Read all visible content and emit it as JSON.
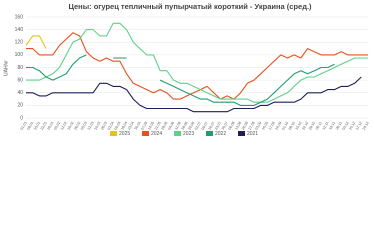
{
  "chart_data": {
    "type": "line",
    "title": "Цены: огурец тепличный пупырчатый короткий - Украина (сред.)",
    "y_label": "UAH/кг",
    "categories": [
      "01.01",
      "08.01",
      "15.01",
      "22.01",
      "29.01",
      "05.02",
      "12.02",
      "19.02",
      "26.02",
      "05.03",
      "12.03",
      "19.03",
      "26.03",
      "02.04",
      "09.04",
      "16.04",
      "23.04",
      "30.04",
      "07.05",
      "14.05",
      "21.05",
      "28.05",
      "04.06",
      "11.06",
      "18.06",
      "25.06",
      "02.07",
      "09.07",
      "16.07",
      "23.07",
      "30.07",
      "06.08",
      "13.08",
      "20.08",
      "27.08",
      "03.09",
      "10.09",
      "17.09",
      "24.09",
      "01.10",
      "08.10",
      "15.10",
      "22.10",
      "29.10",
      "05.11",
      "12.11",
      "19.11",
      "26.11",
      "03.12",
      "10.12",
      "17.12",
      "24.12"
    ],
    "ylim": [
      0,
      160
    ],
    "yticks": [
      0,
      20,
      40,
      60,
      80,
      100,
      120,
      140,
      160
    ],
    "grid": true,
    "series": [
      {
        "name": "2025",
        "color": "#e8c21a",
        "values": [
          115,
          130,
          130,
          110,
          null,
          null,
          null,
          null,
          null,
          null,
          null,
          null,
          null,
          null,
          null,
          null,
          null,
          null,
          null,
          null,
          null,
          null,
          null,
          null,
          null,
          null,
          null,
          null,
          null,
          null,
          null,
          null,
          null,
          null,
          null,
          null,
          null,
          null,
          null,
          null,
          null,
          null,
          null,
          null,
          null,
          null,
          null,
          null,
          null,
          null,
          null,
          null
        ]
      },
      {
        "name": "2024",
        "color": "#e8501e",
        "values": [
          110,
          110,
          100,
          100,
          100,
          115,
          125,
          135,
          130,
          105,
          95,
          90,
          95,
          90,
          90,
          70,
          55,
          50,
          45,
          40,
          45,
          40,
          30,
          30,
          35,
          40,
          45,
          50,
          40,
          30,
          35,
          30,
          40,
          55,
          60,
          70,
          80,
          90,
          100,
          95,
          100,
          95,
          110,
          105,
          100,
          100,
          100,
          105,
          100,
          100,
          100,
          100
        ]
      },
      {
        "name": "2023",
        "color": "#5fd08a",
        "values": [
          60,
          60,
          60,
          65,
          70,
          80,
          100,
          120,
          125,
          140,
          140,
          130,
          130,
          150,
          150,
          140,
          120,
          110,
          100,
          100,
          75,
          75,
          60,
          55,
          55,
          50,
          45,
          40,
          35,
          30,
          30,
          30,
          30,
          30,
          25,
          25,
          25,
          30,
          35,
          40,
          50,
          60,
          65,
          65,
          70,
          75,
          80,
          85,
          90,
          95,
          95,
          95
        ]
      },
      {
        "name": "2022",
        "color": "#1f9e6e",
        "values": [
          80,
          80,
          75,
          65,
          60,
          65,
          70,
          85,
          95,
          100,
          null,
          null,
          null,
          95,
          95,
          95,
          null,
          null,
          null,
          null,
          60,
          55,
          50,
          45,
          40,
          35,
          30,
          30,
          25,
          25,
          25,
          25,
          20,
          20,
          20,
          25,
          30,
          40,
          50,
          60,
          70,
          75,
          70,
          75,
          80,
          80,
          85,
          null,
          null,
          null,
          null,
          null
        ]
      },
      {
        "name": "2021",
        "color": "#1c1f5a",
        "values": [
          40,
          40,
          35,
          35,
          40,
          40,
          40,
          40,
          40,
          40,
          40,
          55,
          55,
          50,
          50,
          45,
          30,
          20,
          15,
          15,
          15,
          15,
          15,
          15,
          15,
          10,
          10,
          10,
          10,
          10,
          10,
          15,
          15,
          15,
          15,
          20,
          20,
          25,
          25,
          25,
          25,
          30,
          40,
          40,
          40,
          45,
          45,
          50,
          50,
          55,
          65,
          null
        ]
      }
    ]
  }
}
